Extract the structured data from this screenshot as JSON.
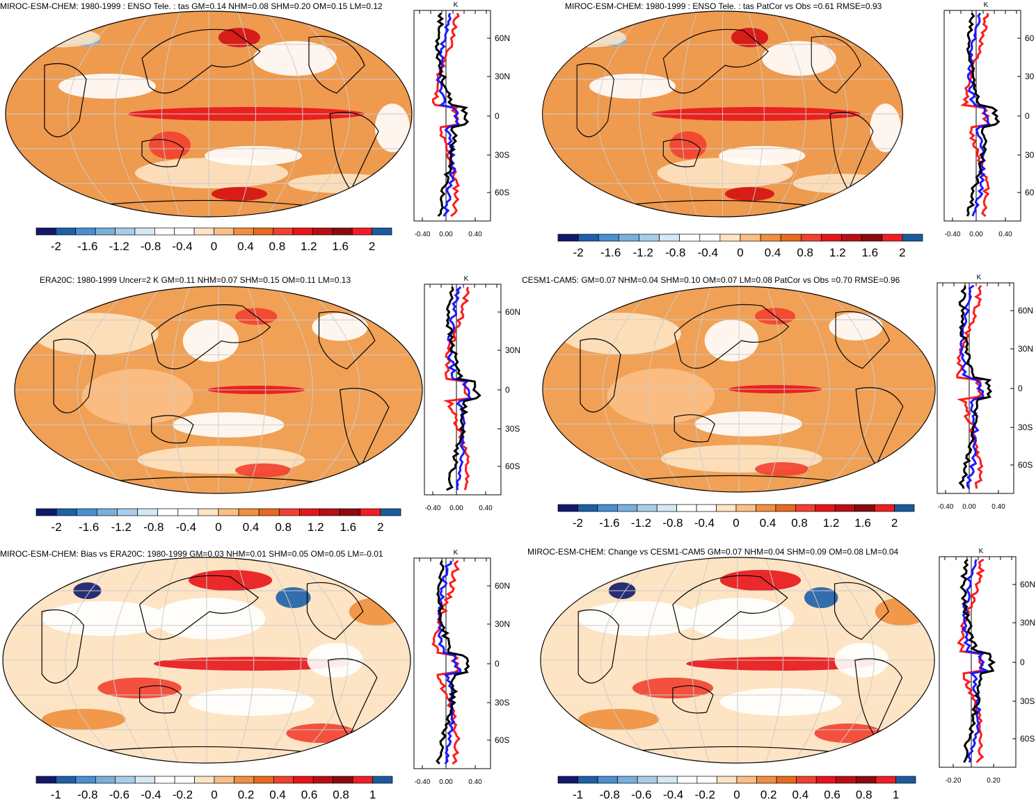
{
  "colors": {
    "scale": [
      "#12196b",
      "#1d5fa8",
      "#4a8fd0",
      "#78b0dc",
      "#a9cde8",
      "#d4e8f2",
      "#ffffff",
      "#ffffff",
      "#fde4c4",
      "#fbbf85",
      "#f08f3d",
      "#e86a1e",
      "#f24030",
      "#e8141a",
      "#bb0e14",
      "#8c0a0f",
      "#f01e24",
      "#1b5b9e"
    ],
    "model_line": "#ff1a1a",
    "obs_line": "#1a1aff",
    "mean_line": "#000000",
    "map_base": "#f0a156",
    "grid": "#cccccc"
  },
  "panels": [
    {
      "title": "MIROC-ESM-CHEM: 1980-1999 : ENSO Tele. : tas GM=0.14 NHM=0.08 SHM=0.20 OM=0.15 LM=0.12",
      "colorbar_labels": [
        "-2",
        "-1.6",
        "-1.2",
        "-0.8",
        "-0.4",
        "0",
        "0.4",
        "0.8",
        "1.2",
        "1.6",
        "2"
      ],
      "profile": {
        "unit": "K",
        "lat_labels": [
          "60N",
          "30N",
          "0",
          "30S",
          "60S"
        ],
        "x_ticks": [
          "-0.40",
          "0.00",
          "0.40"
        ]
      }
    },
    {
      "title": "MIROC-ESM-CHEM: 1980-1999 : ENSO Tele. : tas PatCor vs Obs =0.61 RMSE=0.93",
      "colorbar_labels": [
        "-2",
        "-1.6",
        "-1.2",
        "-0.8",
        "-0.4",
        "0",
        "0.4",
        "0.8",
        "1.2",
        "1.6",
        "2"
      ],
      "profile": {
        "unit": "K",
        "lat_labels": [
          "60",
          "30",
          "0",
          "30",
          "60"
        ],
        "x_ticks": [
          "-0.40",
          "0.00",
          "0.40"
        ]
      }
    },
    {
      "title": "ERA20C: 1980-1999 Uncer=2 K GM=0.11 NHM=0.07 SHM=0.15 OM=0.11 LM=0.13",
      "colorbar_labels": [
        "-2",
        "-1.6",
        "-1.2",
        "-0.8",
        "-0.4",
        "0",
        "0.4",
        "0.8",
        "1.2",
        "1.6",
        "2"
      ],
      "profile": {
        "unit": "K",
        "lat_labels": [
          "60N",
          "30N",
          "0",
          "30S",
          "60S"
        ],
        "x_ticks": [
          "-0.40",
          "0.00",
          "0.40"
        ]
      }
    },
    {
      "title": "CESM1-CAM5: GM=0.07 NHM=0.04 SHM=0.10 OM=0.07 LM=0.08 PatCor vs Obs =0.70 RMSE=0.96",
      "colorbar_labels": [
        "-2",
        "-1.6",
        "-1.2",
        "-0.8",
        "-0.4",
        "0",
        "0.4",
        "0.8",
        "1.2",
        "1.6",
        "2"
      ],
      "profile": {
        "unit": "K",
        "lat_labels": [
          "60N",
          "30N",
          "0",
          "30S",
          "60S"
        ],
        "x_ticks": [
          "-0.40",
          "0.00",
          "0.40"
        ]
      }
    },
    {
      "title": "MIROC-ESM-CHEM: Bias vs ERA20C: 1980-1999 GM=0.03 NHM=0.01 SHM=0.05 OM=0.05 LM=-0.01",
      "colorbar_labels": [
        "-1",
        "-0.8",
        "-0.6",
        "-0.4",
        "-0.2",
        "0",
        "0.2",
        "0.4",
        "0.6",
        "0.8",
        "1"
      ],
      "profile": {
        "unit": "K",
        "lat_labels": [
          "60N",
          "30N",
          "0",
          "30S",
          "60S"
        ],
        "x_ticks": [
          "-0.40",
          "0.00",
          "0.40"
        ]
      }
    },
    {
      "title": "MIROC-ESM-CHEM: Change vs CESM1-CAM5 GM=0.07 NHM=0.04 SHM=0.09 OM=0.08 LM=0.04",
      "colorbar_labels": [
        "-1",
        "-0.8",
        "-0.6",
        "-0.4",
        "-0.2",
        "0",
        "0.2",
        "0.4",
        "0.6",
        "0.8",
        "1"
      ],
      "profile": {
        "unit": "K",
        "lat_labels": [
          "60N",
          "30N",
          "0",
          "30S",
          "60S"
        ],
        "x_ticks": [
          "-0.20",
          "0.20"
        ]
      }
    }
  ]
}
